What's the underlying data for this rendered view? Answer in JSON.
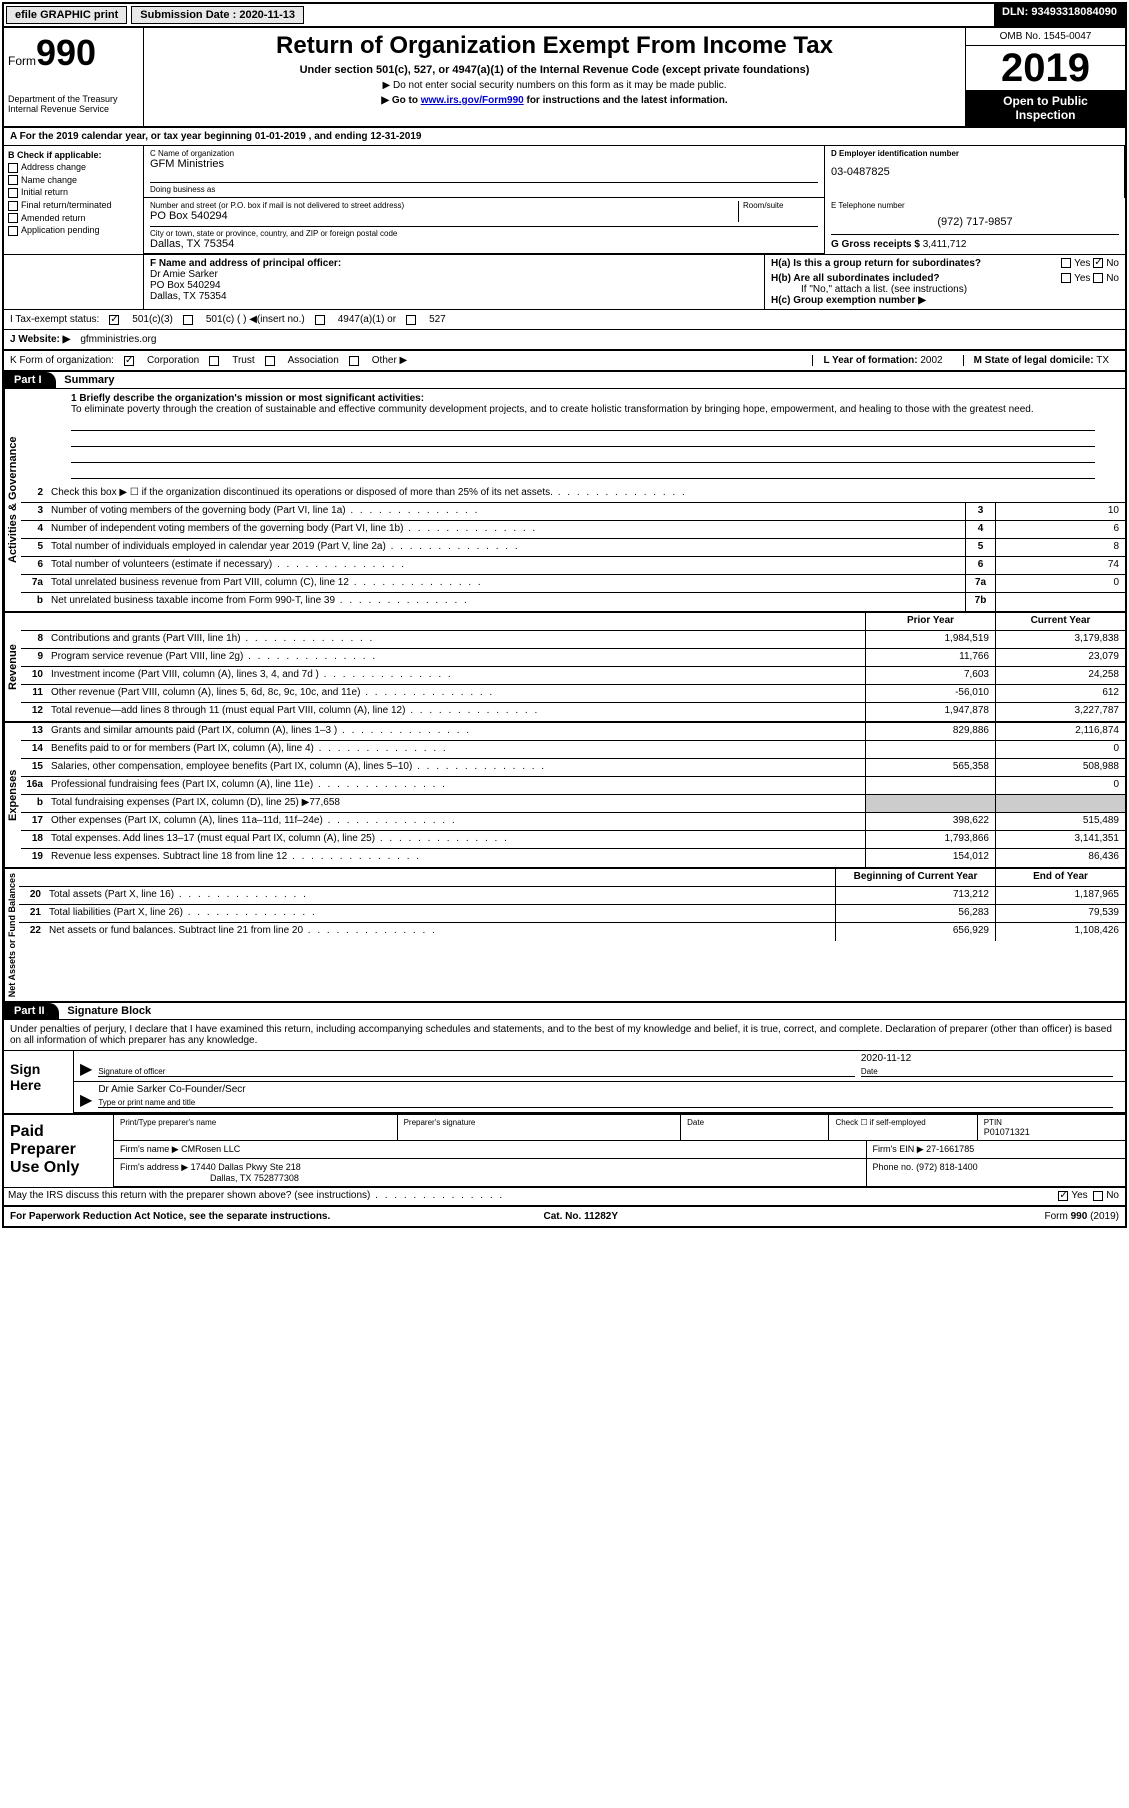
{
  "topbar": {
    "efile": "efile GRAPHIC print",
    "submission_label": "Submission Date :",
    "submission_date": "2020-11-13",
    "dln_label": "DLN:",
    "dln": "93493318084090"
  },
  "header": {
    "form_label": "Form",
    "form_number": "990",
    "dept1": "Department of the Treasury",
    "dept2": "Internal Revenue Service",
    "title": "Return of Organization Exempt From Income Tax",
    "subtitle": "Under section 501(c), 527, or 4947(a)(1) of the Internal Revenue Code (except private foundations)",
    "note1": "▶ Do not enter social security numbers on this form as it may be made public.",
    "note2_pre": "▶ Go to ",
    "note2_link": "www.irs.gov/Form990",
    "note2_post": " for instructions and the latest information.",
    "omb": "OMB No. 1545-0047",
    "year": "2019",
    "open1": "Open to Public",
    "open2": "Inspection"
  },
  "period": "A For the 2019 calendar year, or tax year beginning 01-01-2019   , and ending 12-31-2019",
  "box_b": {
    "title": "B Check if applicable:",
    "items": [
      "Address change",
      "Name change",
      "Initial return",
      "Final return/terminated",
      "Amended return",
      "Application pending"
    ]
  },
  "box_c": {
    "lab": "C Name of organization",
    "name": "GFM Ministries",
    "dba_lab": "Doing business as",
    "dba": ""
  },
  "box_addr": {
    "lab1": "Number and street (or P.O. box if mail is not delivered to street address)",
    "lab2": "Room/suite",
    "street": "PO Box 540294",
    "lab3": "City or town, state or province, country, and ZIP or foreign postal code",
    "city": "Dallas, TX  75354"
  },
  "box_d": {
    "lab": "D Employer identification number",
    "val": "03-0487825"
  },
  "box_e": {
    "lab": "E Telephone number",
    "val": "(972) 717-9857"
  },
  "box_g": {
    "lab": "G Gross receipts $",
    "val": "3,411,712"
  },
  "box_f": {
    "lab": "F  Name and address of principal officer:",
    "l1": "Dr Amie Sarker",
    "l2": "PO Box 540294",
    "l3": "Dallas, TX  75354"
  },
  "box_h": {
    "ha": "H(a)  Is this a group return for subordinates?",
    "hb": "H(b)  Are all subordinates included?",
    "hb_note": "If \"No,\" attach a list. (see instructions)",
    "hc": "H(c)  Group exemption number ▶",
    "yes": "Yes",
    "no": "No"
  },
  "box_i": {
    "lab": "I   Tax-exempt status:",
    "o1": "501(c)(3)",
    "o2": "501(c) (  ) ◀(insert no.)",
    "o3": "4947(a)(1) or",
    "o4": "527"
  },
  "box_j": {
    "lab": "J   Website: ▶",
    "val": "gfmministries.org"
  },
  "box_k": {
    "lab": "K Form of organization:",
    "o1": "Corporation",
    "o2": "Trust",
    "o3": "Association",
    "o4": "Other ▶"
  },
  "box_l": {
    "lab": "L Year of formation:",
    "val": "2002"
  },
  "box_m": {
    "lab": "M State of legal domicile:",
    "val": "TX"
  },
  "part1": {
    "num": "Part I",
    "title": "Summary"
  },
  "mission": {
    "lab": "1  Briefly describe the organization's mission or most significant activities:",
    "text": "To eliminate poverty through the creation of sustainable and effective community development projects, and to create holistic transformation by bringing hope, empowerment, and healing to those with the greatest need."
  },
  "gov_lines": [
    {
      "n": "2",
      "t": "Check this box ▶ ☐  if the organization discontinued its operations or disposed of more than 25% of its net assets."
    },
    {
      "n": "3",
      "t": "Number of voting members of the governing body (Part VI, line 1a)",
      "box": "3",
      "v": "10"
    },
    {
      "n": "4",
      "t": "Number of independent voting members of the governing body (Part VI, line 1b)",
      "box": "4",
      "v": "6"
    },
    {
      "n": "5",
      "t": "Total number of individuals employed in calendar year 2019 (Part V, line 2a)",
      "box": "5",
      "v": "8"
    },
    {
      "n": "6",
      "t": "Total number of volunteers (estimate if necessary)",
      "box": "6",
      "v": "74"
    },
    {
      "n": "7a",
      "t": "Total unrelated business revenue from Part VIII, column (C), line 12",
      "box": "7a",
      "v": "0"
    },
    {
      "n": "b",
      "t": "Net unrelated business taxable income from Form 990-T, line 39",
      "box": "7b",
      "v": ""
    }
  ],
  "col_headers": {
    "prior": "Prior Year",
    "current": "Current Year"
  },
  "revenue": [
    {
      "n": "8",
      "t": "Contributions and grants (Part VIII, line 1h)",
      "p": "1,984,519",
      "c": "3,179,838"
    },
    {
      "n": "9",
      "t": "Program service revenue (Part VIII, line 2g)",
      "p": "11,766",
      "c": "23,079"
    },
    {
      "n": "10",
      "t": "Investment income (Part VIII, column (A), lines 3, 4, and 7d )",
      "p": "7,603",
      "c": "24,258"
    },
    {
      "n": "11",
      "t": "Other revenue (Part VIII, column (A), lines 5, 6d, 8c, 9c, 10c, and 11e)",
      "p": "-56,010",
      "c": "612"
    },
    {
      "n": "12",
      "t": "Total revenue—add lines 8 through 11 (must equal Part VIII, column (A), line 12)",
      "p": "1,947,878",
      "c": "3,227,787"
    }
  ],
  "expenses": [
    {
      "n": "13",
      "t": "Grants and similar amounts paid (Part IX, column (A), lines 1–3 )",
      "p": "829,886",
      "c": "2,116,874"
    },
    {
      "n": "14",
      "t": "Benefits paid to or for members (Part IX, column (A), line 4)",
      "p": "",
      "c": "0"
    },
    {
      "n": "15",
      "t": "Salaries, other compensation, employee benefits (Part IX, column (A), lines 5–10)",
      "p": "565,358",
      "c": "508,988"
    },
    {
      "n": "16a",
      "t": "Professional fundraising fees (Part IX, column (A), line 11e)",
      "p": "",
      "c": "0"
    },
    {
      "n": "b",
      "t": "Total fundraising expenses (Part IX, column (D), line 25) ▶77,658",
      "shade": true
    },
    {
      "n": "17",
      "t": "Other expenses (Part IX, column (A), lines 11a–11d, 11f–24e)",
      "p": "398,622",
      "c": "515,489"
    },
    {
      "n": "18",
      "t": "Total expenses. Add lines 13–17 (must equal Part IX, column (A), line 25)",
      "p": "1,793,866",
      "c": "3,141,351"
    },
    {
      "n": "19",
      "t": "Revenue less expenses. Subtract line 18 from line 12",
      "p": "154,012",
      "c": "86,436"
    }
  ],
  "net_headers": {
    "beg": "Beginning of Current Year",
    "end": "End of Year"
  },
  "netassets": [
    {
      "n": "20",
      "t": "Total assets (Part X, line 16)",
      "p": "713,212",
      "c": "1,187,965"
    },
    {
      "n": "21",
      "t": "Total liabilities (Part X, line 26)",
      "p": "56,283",
      "c": "79,539"
    },
    {
      "n": "22",
      "t": "Net assets or fund balances. Subtract line 21 from line 20",
      "p": "656,929",
      "c": "1,108,426"
    }
  ],
  "vlabels": {
    "gov": "Activities & Governance",
    "rev": "Revenue",
    "exp": "Expenses",
    "net": "Net Assets or Fund Balances"
  },
  "part2": {
    "num": "Part II",
    "title": "Signature Block"
  },
  "declare": "Under penalties of perjury, I declare that I have examined this return, including accompanying schedules and statements, and to the best of my knowledge and belief, it is true, correct, and complete. Declaration of preparer (other than officer) is based on all information of which preparer has any knowledge.",
  "sign": {
    "here": "Sign Here",
    "sig_lab": "Signature of officer",
    "date_lab": "Date",
    "date": "2020-11-12",
    "name": "Dr Amie Sarker  Co-Founder/Secr",
    "name_lab": "Type or print name and title"
  },
  "paid": {
    "title": "Paid Preparer Use Only",
    "c1": "Print/Type preparer's name",
    "c2": "Preparer's signature",
    "c3": "Date",
    "c4a": "Check ☐ if self-employed",
    "c4b_lab": "PTIN",
    "c4b": "P01071321",
    "firm_lab": "Firm's name    ▶",
    "firm": "CMRosen LLC",
    "ein_lab": "Firm's EIN ▶",
    "ein": "27-1661785",
    "addr_lab": "Firm's address ▶",
    "addr1": "17440 Dallas Pkwy Ste 218",
    "addr2": "Dallas, TX  752877308",
    "phone_lab": "Phone no.",
    "phone": "(972) 818-1400",
    "discuss": "May the IRS discuss this return with the preparer shown above? (see instructions)",
    "yes": "Yes",
    "no": "No"
  },
  "footer": {
    "l": "For Paperwork Reduction Act Notice, see the separate instructions.",
    "m": "Cat. No. 11282Y",
    "r": "Form 990 (2019)"
  },
  "colors": {
    "black": "#000000",
    "link": "#0000cc",
    "shade": "#cccccc",
    "btn": "#e8e8e8"
  }
}
